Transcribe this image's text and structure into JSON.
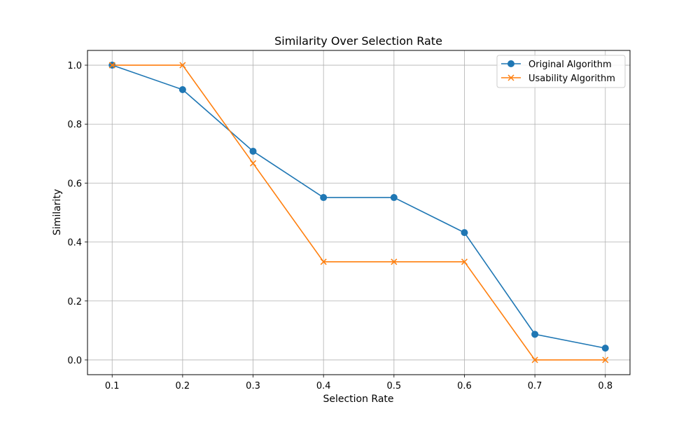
{
  "chart_data": {
    "type": "line",
    "title": "Similarity Over Selection Rate",
    "xlabel": "Selection Rate",
    "ylabel": "Similarity",
    "x": [
      0.1,
      0.2,
      0.3,
      0.4,
      0.5,
      0.6,
      0.7,
      0.8
    ],
    "x_ticks": [
      "0.1",
      "0.2",
      "0.3",
      "0.4",
      "0.5",
      "0.6",
      "0.7",
      "0.8"
    ],
    "y_ticks": [
      "0.0",
      "0.2",
      "0.4",
      "0.6",
      "0.8",
      "1.0"
    ],
    "xlim": [
      0.065,
      0.835
    ],
    "ylim": [
      -0.05,
      1.05
    ],
    "grid": true,
    "legend_position": "top-right",
    "series": [
      {
        "name": "Original Algorithm",
        "color": "#1f77b4",
        "marker": "circle",
        "values": [
          1.0,
          0.917,
          0.708,
          0.551,
          0.551,
          0.432,
          0.087,
          0.04
        ]
      },
      {
        "name": "Usability Algorithm",
        "color": "#ff7f0e",
        "marker": "x",
        "values": [
          1.0,
          1.0,
          0.667,
          0.333,
          0.333,
          0.333,
          0.0,
          0.0
        ]
      }
    ]
  }
}
